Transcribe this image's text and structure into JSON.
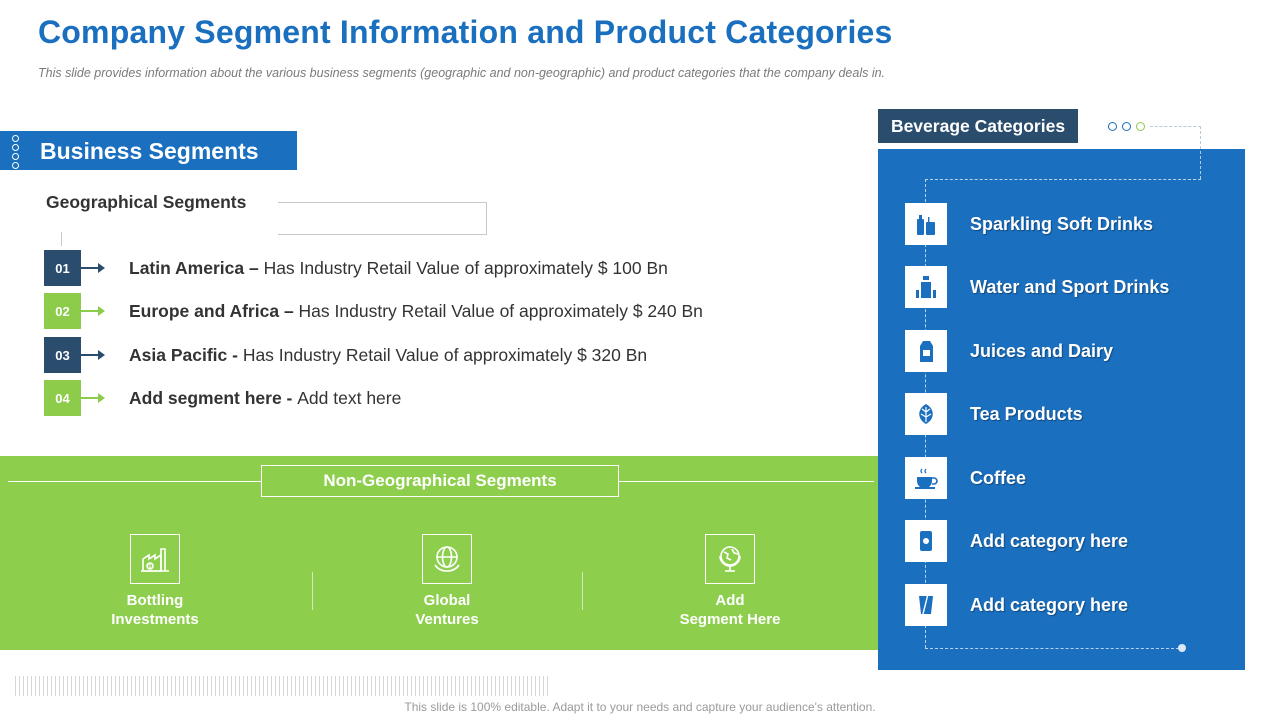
{
  "header": {
    "title": "Company Segment Information and Product Categories",
    "subtitle": "This slide provides information about the various business segments (geographic and non-geographic) and product categories that the company deals in."
  },
  "business_segments": {
    "title": "Business Segments",
    "geographical": {
      "title": "Geographical Segments",
      "items": [
        {
          "num": "01",
          "name": "Latin America",
          "sep": " – ",
          "text": "Has Industry Retail Value of approximately $ 100 Bn"
        },
        {
          "num": "02",
          "name": "Europe and Africa",
          "sep": " – ",
          "text": "Has Industry Retail Value of approximately $ 240 Bn"
        },
        {
          "num": "03",
          "name": "Asia Pacific",
          "sep": " - ",
          "text": "Has Industry Retail Value of approximately $ 320 Bn"
        },
        {
          "num": "04",
          "name": "Add segment here",
          "sep": " - ",
          "text": "Add text here"
        }
      ]
    },
    "non_geographical": {
      "title": "Non-Geographical Segments",
      "items": [
        {
          "label": "Bottling\nInvestments",
          "icon": "factory-icon"
        },
        {
          "label": "Global\nVentures",
          "icon": "globe-hands-icon"
        },
        {
          "label": "Add\nSegment Here",
          "icon": "globe-stand-icon"
        }
      ]
    }
  },
  "beverage_categories": {
    "title": "Beverage Categories",
    "items": [
      {
        "label": "Sparkling Soft Drinks",
        "icon": "soda-icon"
      },
      {
        "label": "Water and Sport Drinks",
        "icon": "water-bottle-icon"
      },
      {
        "label": "Juices and Dairy",
        "icon": "juice-carton-icon"
      },
      {
        "label": "Tea Products",
        "icon": "tea-leaf-icon"
      },
      {
        "label": "Coffee",
        "icon": "coffee-cup-icon"
      },
      {
        "label": "Add category here",
        "icon": "can-icon"
      },
      {
        "label": "Add category here",
        "icon": "glass-icon"
      }
    ]
  },
  "footer": {
    "text": "This slide is 100% editable. Adapt it to your needs and capture your audience's attention."
  },
  "colors": {
    "primary_blue": "#1a6fbf",
    "dark_navy": "#2a4d6e",
    "green": "#8dcc4b"
  }
}
